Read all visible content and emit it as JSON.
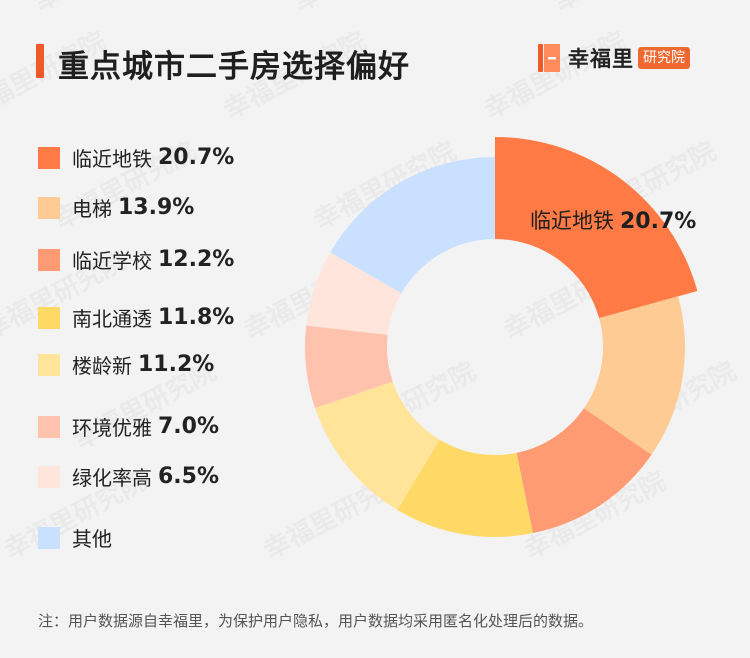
{
  "header": {
    "title": "重点城市二手房选择偏好",
    "brand_name": "幸福里",
    "brand_badge": "研究院",
    "watermark_text": "幸福里研究院"
  },
  "colors": {
    "accent": "#f05a28",
    "badge": "#ef6a33"
  },
  "chart_data": {
    "type": "pie",
    "donut": true,
    "title": "重点城市二手房选择偏好",
    "slices": [
      {
        "label": "临近地铁",
        "value": 20.7,
        "display": "20.7%",
        "color": "#ff7a45"
      },
      {
        "label": "电梯",
        "value": 13.9,
        "display": "13.9%",
        "color": "#ffcb94"
      },
      {
        "label": "临近学校",
        "value": 12.2,
        "display": "12.2%",
        "color": "#ff9b73"
      },
      {
        "label": "南北通透",
        "value": 11.8,
        "display": "11.8%",
        "color": "#ffd966"
      },
      {
        "label": "楼龄新",
        "value": 11.2,
        "display": "11.2%",
        "color": "#ffe49a"
      },
      {
        "label": "环境优雅",
        "value": 7.0,
        "display": "7.0%",
        "color": "#ffc2ad"
      },
      {
        "label": "绿化率高",
        "value": 6.5,
        "display": "6.5%",
        "color": "#ffe5dc"
      },
      {
        "label": "其他",
        "value": 16.7,
        "display": "",
        "color": "#c9e0ff"
      }
    ],
    "highlighted_slice": 0,
    "callout": {
      "label": "临近地铁",
      "value": "20.7%"
    },
    "legend_position": "left"
  },
  "footnote": "注：用户数据源自幸福里，为保护用户隐私，用户数据均采用匿名化处理后的数据。"
}
